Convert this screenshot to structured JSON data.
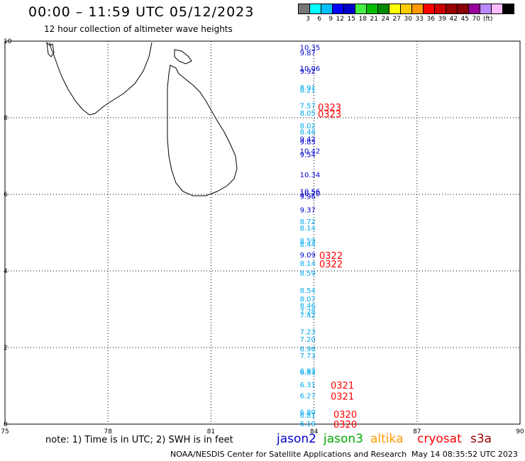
{
  "header": {
    "title": "00:00 – 11:59 UTC 05/12/2023",
    "subtitle": "12 hour collection of altimeter wave heights"
  },
  "scale": {
    "colors": [
      "#777777",
      "#00ffff",
      "#00bfff",
      "#0000ff",
      "#0000cc",
      "#44ee44",
      "#00bb00",
      "#008800",
      "#ffff00",
      "#ffcc00",
      "#ff9900",
      "#ff0000",
      "#cc0000",
      "#990000",
      "#880000",
      "#990099",
      "#bb88ff",
      "#ffbbff",
      "#000000"
    ],
    "labels": [
      "3",
      "6",
      "9",
      "12",
      "15",
      "18",
      "21",
      "24",
      "27",
      "30",
      "33",
      "36",
      "39",
      "42",
      "45",
      "70",
      "(ft)"
    ]
  },
  "map": {
    "xrange": [
      75,
      90
    ],
    "yrange": [
      0,
      10
    ],
    "xticks": [
      "75",
      "78",
      "81",
      "84",
      "87",
      "90"
    ],
    "yticks": [
      "0",
      "2",
      "4",
      "6",
      "8",
      "10"
    ]
  },
  "observations": [
    {
      "lat": 9.84,
      "label": "10.35",
      "color": "#0000cc"
    },
    {
      "lat": 9.7,
      "label": "9.87",
      "color": "#0000cc"
    },
    {
      "lat": 9.3,
      "label": "10.06",
      "color": "#0000cc"
    },
    {
      "lat": 9.22,
      "label": "9.92",
      "color": "#0000cc"
    },
    {
      "lat": 8.8,
      "label": "8.91",
      "color": "#00aaee"
    },
    {
      "lat": 8.73,
      "label": "8.21",
      "color": "#00aaee"
    },
    {
      "lat": 8.32,
      "label": "7.57",
      "color": "#00aaee"
    },
    {
      "lat": 8.13,
      "label": "8.05",
      "color": "#00aaee"
    },
    {
      "lat": 7.8,
      "label": "8.02",
      "color": "#00aaee"
    },
    {
      "lat": 7.64,
      "label": "8.46",
      "color": "#00aaee"
    },
    {
      "lat": 7.45,
      "label": "9.42",
      "color": "#0000cc"
    },
    {
      "lat": 7.38,
      "label": "9.83",
      "color": "#0000cc"
    },
    {
      "lat": 7.14,
      "label": "10.42",
      "color": "#0000cc"
    },
    {
      "lat": 7.05,
      "label": "9.54",
      "color": "#0000cc"
    },
    {
      "lat": 6.52,
      "label": "10.34",
      "color": "#0000cc"
    },
    {
      "lat": 6.08,
      "label": "10.56",
      "color": "#0000cc"
    },
    {
      "lat": 6.03,
      "label": "10.70",
      "color": "#0000cc"
    },
    {
      "lat": 5.95,
      "label": "9.96",
      "color": "#0000cc"
    },
    {
      "lat": 5.6,
      "label": "9.37",
      "color": "#0000cc"
    },
    {
      "lat": 5.3,
      "label": "8.72",
      "color": "#00aaee"
    },
    {
      "lat": 5.13,
      "label": "8.14",
      "color": "#00aaee"
    },
    {
      "lat": 4.8,
      "label": "8.59",
      "color": "#00aaee"
    },
    {
      "lat": 4.7,
      "label": "8.44",
      "color": "#00aaee"
    },
    {
      "lat": 4.43,
      "label": "9.09",
      "color": "#0000cc"
    },
    {
      "lat": 4.2,
      "label": "8.14",
      "color": "#00aaee"
    },
    {
      "lat": 3.95,
      "label": "8.59",
      "color": "#00aaee"
    },
    {
      "lat": 3.5,
      "label": "8.54",
      "color": "#00aaee"
    },
    {
      "lat": 3.28,
      "label": "8.07",
      "color": "#00aaee"
    },
    {
      "lat": 3.1,
      "label": "8.46",
      "color": "#00aaee"
    },
    {
      "lat": 2.95,
      "label": "7.28",
      "color": "#00aaee"
    },
    {
      "lat": 2.85,
      "label": "7.42",
      "color": "#00aaee"
    },
    {
      "lat": 2.42,
      "label": "7.23",
      "color": "#00aaee"
    },
    {
      "lat": 2.22,
      "label": "7.20",
      "color": "#00aaee"
    },
    {
      "lat": 1.97,
      "label": "6.96",
      "color": "#00aaee"
    },
    {
      "lat": 1.8,
      "label": "7.73",
      "color": "#00aaee"
    },
    {
      "lat": 1.4,
      "label": "6.92",
      "color": "#00aaee"
    },
    {
      "lat": 1.36,
      "label": "6.83",
      "color": "#00aaee"
    },
    {
      "lat": 1.04,
      "label": "6.31",
      "color": "#00aaee"
    },
    {
      "lat": 0.75,
      "label": "6.27",
      "color": "#00aaee"
    },
    {
      "lat": 0.32,
      "label": "6.80",
      "color": "#00aaee"
    },
    {
      "lat": 0.24,
      "label": "6.81",
      "color": "#00aaee"
    },
    {
      "lat": 0.02,
      "label": "6.19",
      "color": "#00aaee"
    }
  ],
  "passes": [
    {
      "lat": 8.3,
      "label": "0323",
      "color": "#ff0000"
    },
    {
      "lat": 8.12,
      "label": "0323",
      "color": "#ff0000"
    },
    {
      "lat": 4.43,
      "label": "0322",
      "color": "#ff0000"
    },
    {
      "lat": 4.2,
      "label": "0322",
      "color": "#ff0000"
    },
    {
      "lat": 1.04,
      "label": "0321",
      "color": "#ff0000"
    },
    {
      "lat": 0.75,
      "label": "0321",
      "color": "#ff0000"
    },
    {
      "lat": 0.28,
      "label": "0320",
      "color": "#ff0000"
    },
    {
      "lat": 0.02,
      "label": "0320",
      "color": "#ff0000"
    }
  ],
  "footer": {
    "note": "note:  1) Time is in UTC;  2) SWH is in feet",
    "legend": [
      {
        "name": "jason2",
        "color": "#0000cc"
      },
      {
        "name": "jason3",
        "color": "#00aa00"
      },
      {
        "name": "altika",
        "color": "#ff9900"
      },
      {
        "name": "cryosat",
        "color": "#ff0000"
      },
      {
        "name": "s3a",
        "color": "#990000"
      }
    ],
    "credit": "NOAA/NESDIS Center for Satellite Applications and Research",
    "timestamp": "May 14 08:35:52 UTC 2023"
  }
}
